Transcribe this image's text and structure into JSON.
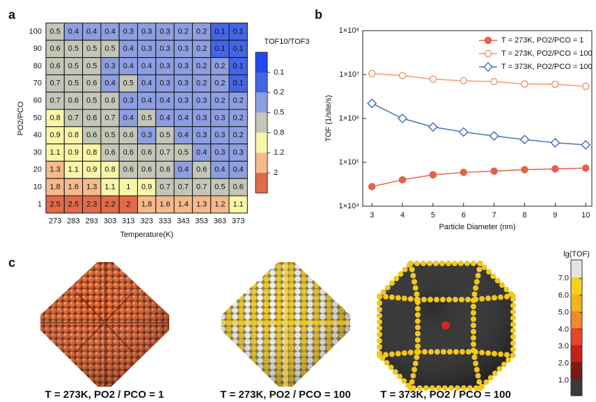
{
  "chart_data": [
    {
      "type": "heatmap",
      "panel_label": "a",
      "x_categories": [
        "273",
        "283",
        "293",
        "303",
        "313",
        "323",
        "333",
        "343",
        "353",
        "363",
        "373"
      ],
      "y_categories": [
        "100",
        "90",
        "80",
        "70",
        "60",
        "50",
        "40",
        "30",
        "20",
        "10",
        "1"
      ],
      "values": [
        [
          0.5,
          0.4,
          0.4,
          0.4,
          0.3,
          0.3,
          0.3,
          0.2,
          0.2,
          0.1,
          0.1
        ],
        [
          0.6,
          0.5,
          0.5,
          0.5,
          0.4,
          0.3,
          0.3,
          0.3,
          0.2,
          0.1,
          0.1
        ],
        [
          0.6,
          0.5,
          0.5,
          0.3,
          0.4,
          0.4,
          0.3,
          0.3,
          0.2,
          0.2,
          0.1
        ],
        [
          0.7,
          0.5,
          0.6,
          0.4,
          0.5,
          0.4,
          0.3,
          0.3,
          0.2,
          0.2,
          0.1
        ],
        [
          0.7,
          0.6,
          0.5,
          0.6,
          0.3,
          0.4,
          0.4,
          0.3,
          0.3,
          0.2,
          0.2
        ],
        [
          0.8,
          0.7,
          0.6,
          0.7,
          0.4,
          0.5,
          0.4,
          0.4,
          0.3,
          0.3,
          0.2
        ],
        [
          0.9,
          0.8,
          0.6,
          0.5,
          0.6,
          0.3,
          0.5,
          0.4,
          0.3,
          0.3,
          0.2
        ],
        [
          1.1,
          0.9,
          0.8,
          0.6,
          0.6,
          0.6,
          0.7,
          0.5,
          0.4,
          0.3,
          0.3
        ],
        [
          1.3,
          1.1,
          0.9,
          0.8,
          0.6,
          0.6,
          0.6,
          0.4,
          0.6,
          0.4,
          0.4
        ],
        [
          1.8,
          1.6,
          1.3,
          1.1,
          1.0,
          0.9,
          0.7,
          0.7,
          0.7,
          0.5,
          0.6
        ],
        [
          2.5,
          2.5,
          2.3,
          2.2,
          2.0,
          1.8,
          1.6,
          1.4,
          1.3,
          1.2,
          1.1
        ]
      ],
      "xlabel": "Temperature(K)",
      "ylabel": "PO2/PCO",
      "colorbar_title": "TOF10/TOF3",
      "color_levels": [
        0.1,
        0.2,
        0.5,
        0.8,
        1.2,
        2
      ],
      "colors": [
        "#1f47f0",
        "#4564e6",
        "#8d9fe0",
        "#c4c7b7",
        "#f9f6a8",
        "#f4ba8e",
        "#df6b4a"
      ]
    },
    {
      "type": "line",
      "panel_label": "b",
      "log_y": true,
      "x": [
        3,
        4,
        5,
        6,
        7,
        8,
        9,
        10
      ],
      "xlim": [
        2.7,
        10.2
      ],
      "xticks": [
        3,
        4,
        5,
        6,
        7,
        8,
        9,
        10
      ],
      "ylim": [
        10000,
        100000000
      ],
      "yticks": [
        {
          "value": 10000,
          "label": "1×10⁴"
        },
        {
          "value": 100000,
          "label": "1×10⁵"
        },
        {
          "value": 1000000,
          "label": "1×10⁶"
        },
        {
          "value": 10000000,
          "label": "1×10⁷"
        },
        {
          "value": 100000000,
          "label": "1×10⁸"
        }
      ],
      "xlabel": "Particle Diameter (nm)",
      "ylabel": "TOF (1/site/s)",
      "legend": "upper-right",
      "series": [
        {
          "name": "T = 273K, PO2/PCO = 1",
          "color": "#e8604c",
          "marker": "circle-filled",
          "values": [
            28000,
            40000,
            52000,
            59000,
            63000,
            68000,
            71000,
            74000
          ]
        },
        {
          "name": "T = 273K, PO2/PCO = 100",
          "color": "#f39a6e",
          "marker": "circle-open",
          "values": [
            10500000,
            9500000,
            7900000,
            7200000,
            6900000,
            6100000,
            6000000,
            5400000
          ]
        },
        {
          "name": "T = 373K, PO2/PCO = 100",
          "color": "#4a72c0",
          "marker": "diamond-open",
          "values": [
            2200000,
            1000000,
            640000,
            490000,
            400000,
            330000,
            280000,
            250000
          ]
        }
      ]
    },
    {
      "type": "colorbar",
      "panel_label": "c",
      "title": "lg(TOF)",
      "ylim": [
        0.1,
        8.1
      ],
      "yticks": [
        {
          "value": 1,
          "label": "1.0"
        },
        {
          "value": 2,
          "label": "2.0"
        },
        {
          "value": 3,
          "label": "3.0"
        },
        {
          "value": 4,
          "label": "4.0"
        },
        {
          "value": 5,
          "label": "5.0"
        },
        {
          "value": 6,
          "label": "6.0"
        },
        {
          "value": 7,
          "label": "7.0"
        }
      ],
      "colors": [
        "#3a3a3a",
        "#7a1a12",
        "#c0231a",
        "#e8452a",
        "#f08a2a",
        "#f2b51e",
        "#f4d21c",
        "#e4e4e4"
      ],
      "captions": [
        "T = 273K, PO2 / PCO = 1",
        "T = 273K, PO2 / PCO = 100",
        "T = 373K, PO2 / PCO = 100"
      ]
    }
  ]
}
